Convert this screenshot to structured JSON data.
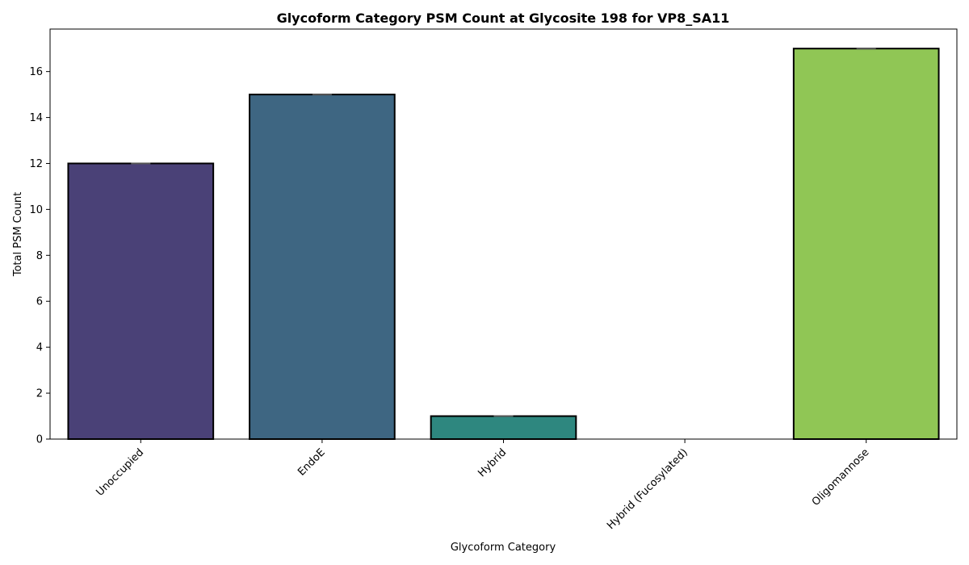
{
  "chart_data": {
    "type": "bar",
    "title": "Glycoform Category PSM Count at Glycosite 198 for VP8_SA11",
    "xlabel": "Glycoform Category",
    "ylabel": "Total PSM Count",
    "categories": [
      "Unoccupied",
      "EndoE",
      "Hybrid",
      "Hybrid (Fucosylated)",
      "Oligomannose"
    ],
    "values": [
      12,
      15,
      1,
      0,
      17
    ],
    "colors": [
      "#4a4177",
      "#3e6682",
      "#2e877f",
      "#2e877f",
      "#90c655"
    ],
    "ylim": [
      0,
      17.85
    ],
    "yticks": [
      0,
      2,
      4,
      6,
      8,
      10,
      12,
      14,
      16
    ],
    "grid": false,
    "legend": "none"
  }
}
